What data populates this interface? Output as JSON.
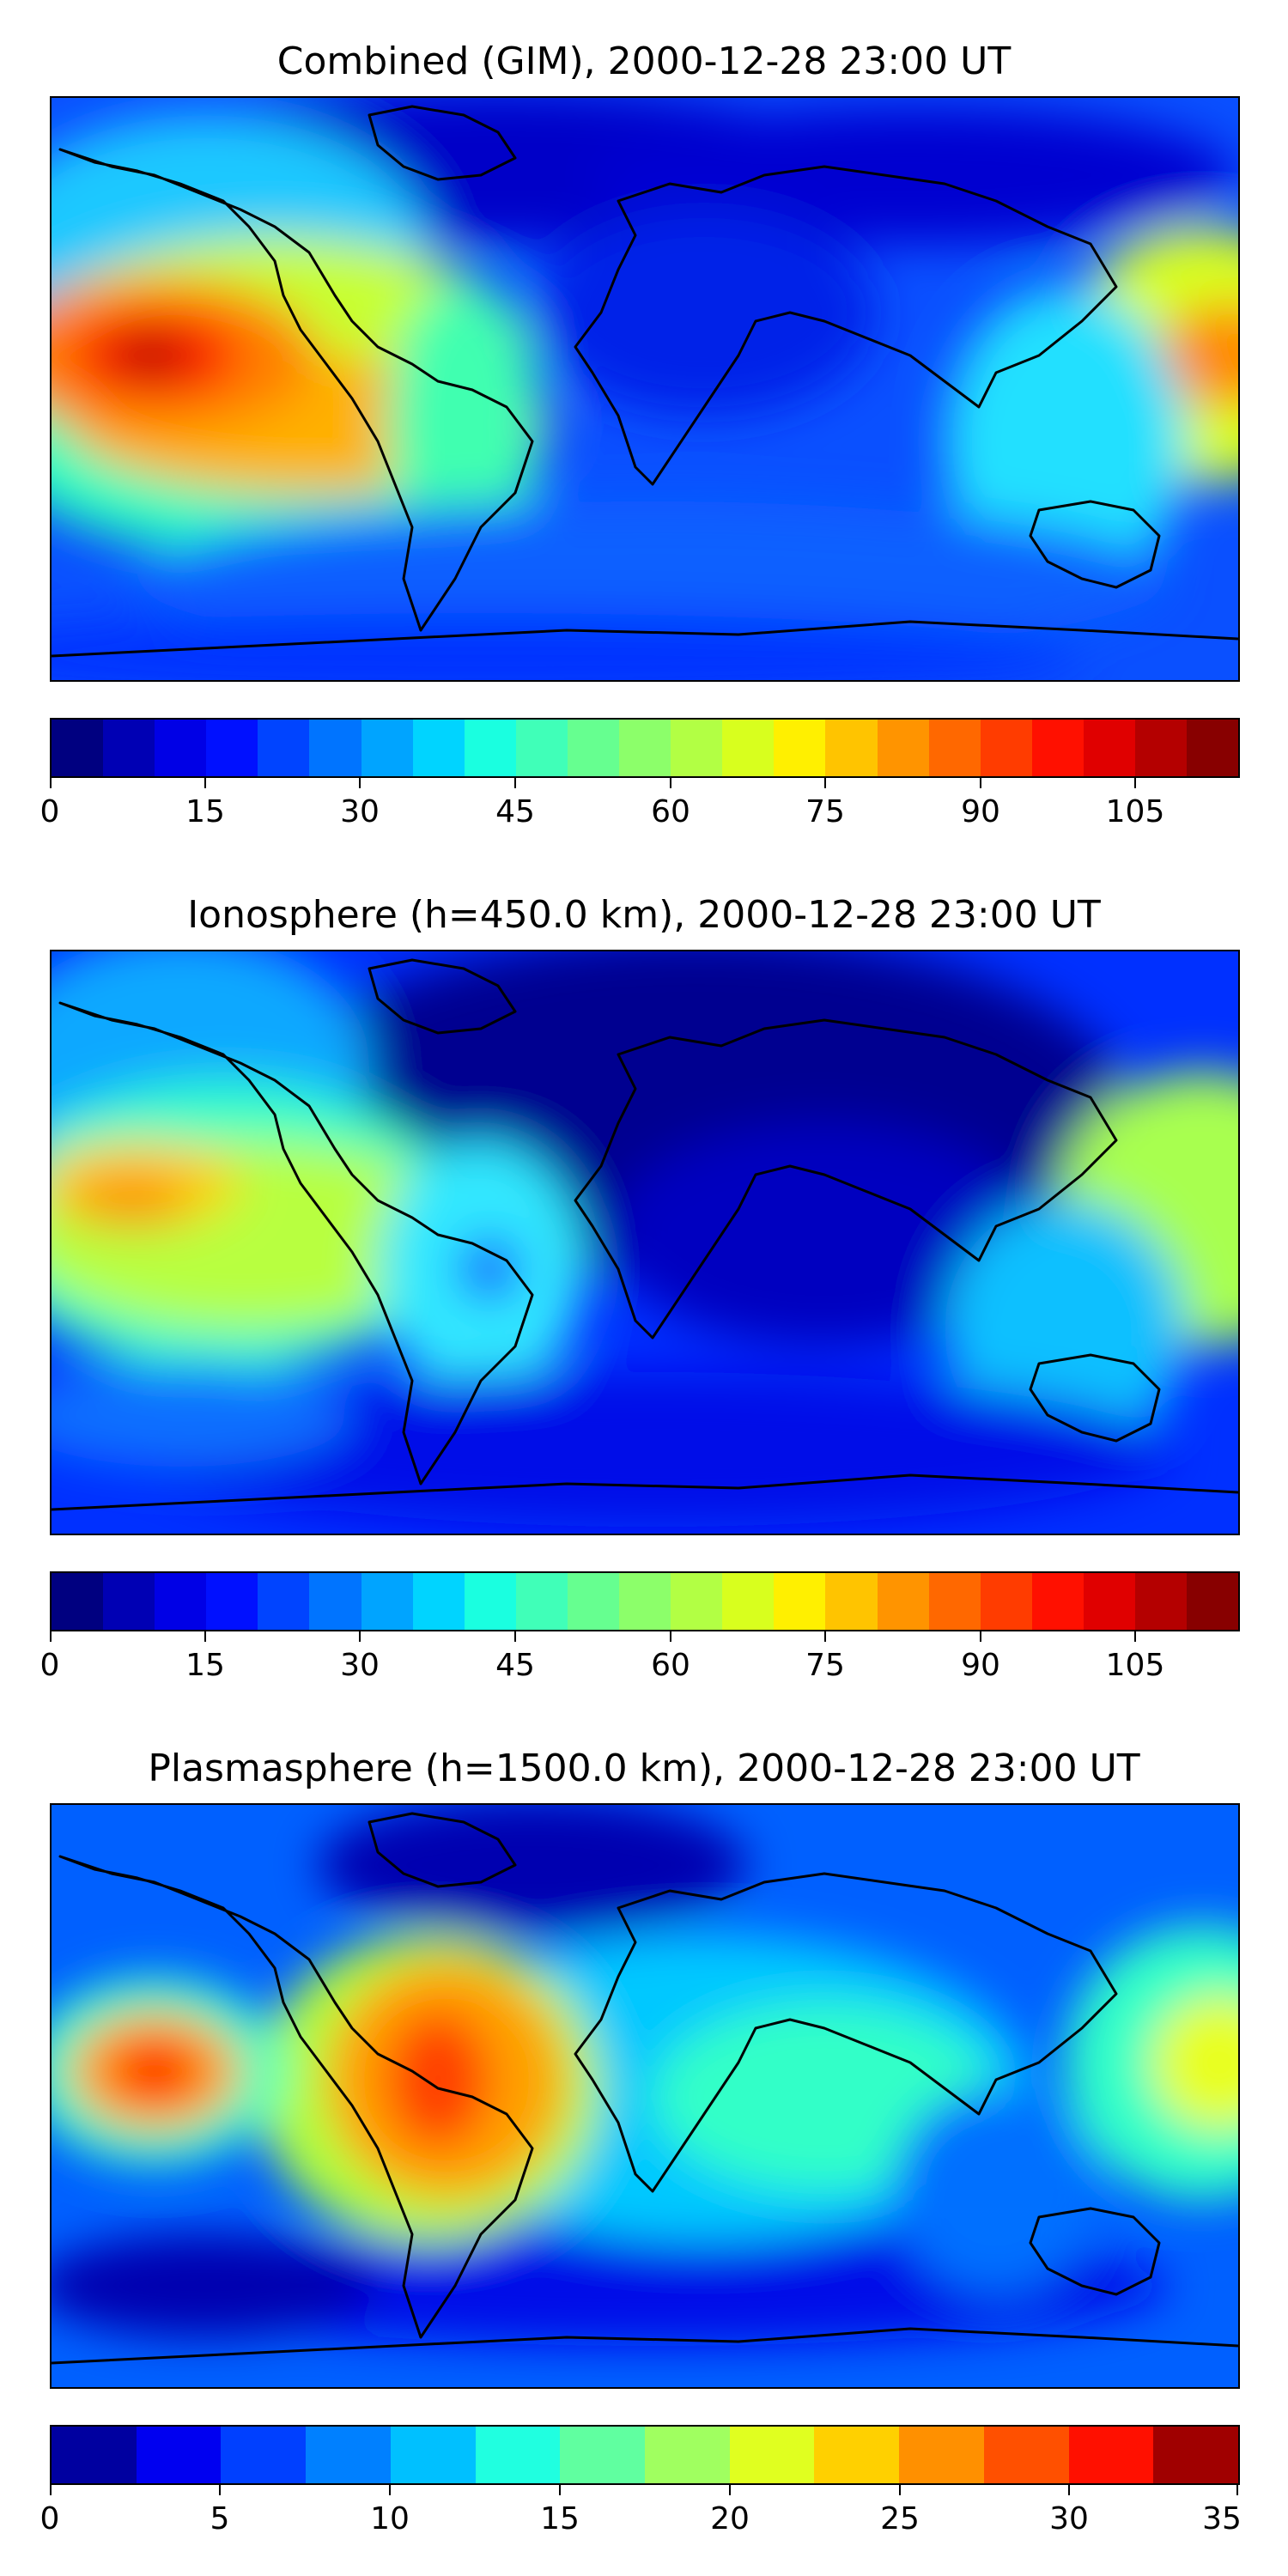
{
  "panels": [
    {
      "title": "Combined (GIM), 2000-12-28 23:00 UT",
      "colorbar": {
        "min": 0,
        "max": 115,
        "segments": 23,
        "tick_labels": [
          "0",
          "15",
          "30",
          "45",
          "60",
          "75",
          "90",
          "105"
        ],
        "tick_values": [
          0,
          15,
          30,
          45,
          60,
          75,
          90,
          105
        ]
      }
    },
    {
      "title": "Ionosphere  (h=450.0 km), 2000-12-28 23:00 UT",
      "colorbar": {
        "min": 0,
        "max": 115,
        "segments": 23,
        "tick_labels": [
          "0",
          "15",
          "30",
          "45",
          "60",
          "75",
          "90",
          "105"
        ],
        "tick_values": [
          0,
          15,
          30,
          45,
          60,
          75,
          90,
          105
        ]
      }
    },
    {
      "title": "Plasmasphere (h=1500.0 km), 2000-12-28 23:00 UT",
      "colorbar": {
        "min": 0,
        "max": 35,
        "segments": 14,
        "tick_labels": [
          "0",
          "5",
          "10",
          "15",
          "20",
          "25",
          "30",
          "35"
        ],
        "tick_values": [
          0,
          5,
          10,
          15,
          20,
          25,
          30,
          35
        ]
      }
    }
  ],
  "colormap": "jet"
}
